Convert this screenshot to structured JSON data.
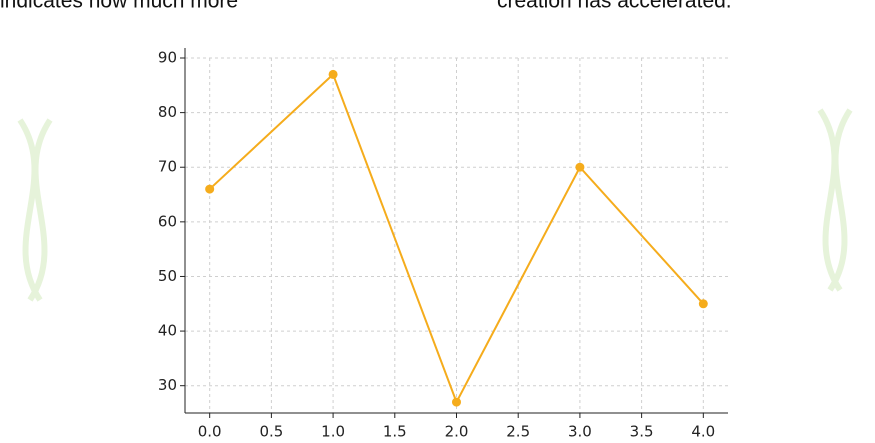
{
  "text_fragments": [
    "indicates how much more",
    "creation has accelerated."
  ],
  "chart_data": {
    "type": "line",
    "x": [
      0,
      1,
      2,
      3,
      4
    ],
    "series": [
      {
        "color": "#f5ac1c",
        "values": [
          66,
          87,
          27,
          70,
          45
        ]
      }
    ],
    "xlim": [
      -0.2,
      4.2
    ],
    "xticks": [
      {
        "value": 0,
        "label": "0.0"
      },
      0.5,
      {
        "value": 1,
        "label": "1.0"
      },
      1.5,
      {
        "value": 2,
        "label": "2.0"
      },
      2.5,
      {
        "value": 3,
        "label": "3.0"
      },
      3.5,
      {
        "value": 4,
        "label": "4.0"
      }
    ],
    "ylim": [
      25,
      90
    ],
    "yticks": [
      30,
      40,
      50,
      60,
      70,
      80,
      90
    ],
    "grid": true
  }
}
